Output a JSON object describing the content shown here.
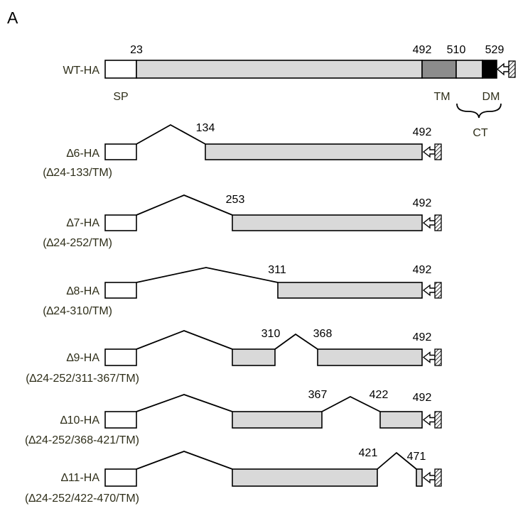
{
  "panel_label": "A",
  "constructs": [
    {
      "name": "WT-HA",
      "subtitle": "",
      "positions": [
        "23",
        "492",
        "510",
        "529"
      ],
      "domains": [
        "SP",
        "TM",
        "DM"
      ],
      "bracket_label": "CT"
    },
    {
      "name": "∆6-HA",
      "subtitle": "(∆24-133/TM)",
      "positions": [
        "134",
        "492"
      ]
    },
    {
      "name": "∆7-HA",
      "subtitle": "(∆24-252/TM)",
      "positions": [
        "253",
        "492"
      ]
    },
    {
      "name": "∆8-HA",
      "subtitle": "(∆24-310/TM)",
      "positions": [
        "311",
        "492"
      ]
    },
    {
      "name": "∆9-HA",
      "subtitle": "(∆24-252/311-367/TM)",
      "positions": [
        "310",
        "368",
        "492"
      ]
    },
    {
      "name": "∆10-HA",
      "subtitle": "(∆24-252/368-421/TM)",
      "positions": [
        "367",
        "422",
        "492"
      ]
    },
    {
      "name": "∆11-HA",
      "subtitle": "(∆24-252/422-470/TM)",
      "positions": [
        "421",
        "471"
      ]
    }
  ]
}
